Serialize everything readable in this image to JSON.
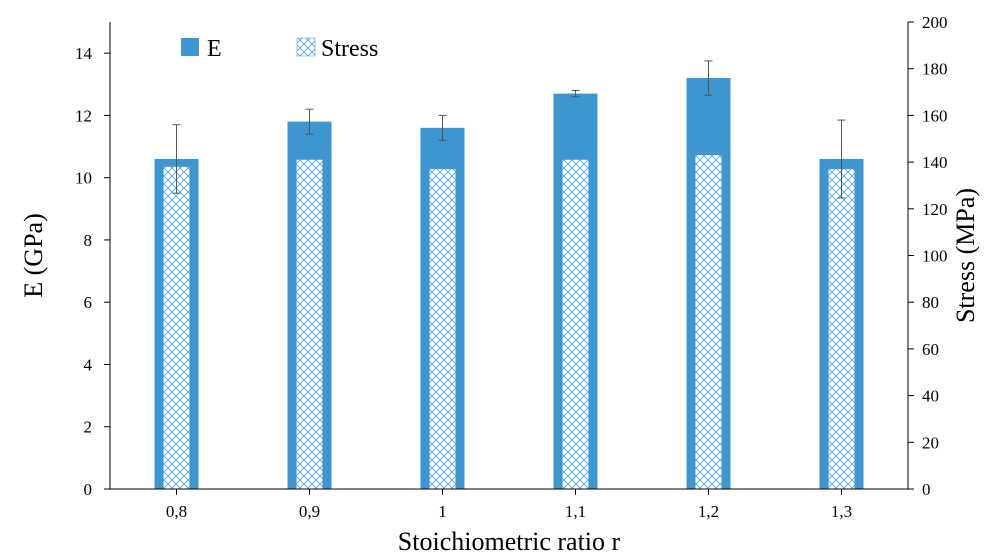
{
  "chart_data": {
    "type": "bar",
    "categories": [
      "0,8",
      "0,9",
      "1",
      "1,1",
      "1,2",
      "1,3"
    ],
    "xlabel": "Stoichiometric ratio r",
    "ylabel": "E (GPa)",
    "y2label": "Stress (MPa)",
    "ylim": [
      0,
      15
    ],
    "y2lim": [
      0,
      200
    ],
    "yticks": [
      "0",
      "2",
      "4",
      "6",
      "8",
      "10",
      "12",
      "14"
    ],
    "y2ticks": [
      "0",
      "20",
      "40",
      "60",
      "80",
      "100",
      "120",
      "140",
      "160",
      "180",
      "200"
    ],
    "grid": false,
    "legend_position": "top-left",
    "series": [
      {
        "name": "E",
        "axis": "left",
        "values": [
          10.6,
          11.8,
          11.6,
          12.7,
          13.2,
          10.6
        ],
        "errors": [
          1.1,
          0.4,
          0.4,
          0.1,
          0.55,
          1.25
        ],
        "color": "#3d96cf",
        "pattern": "solid"
      },
      {
        "name": "Stress",
        "axis": "right",
        "values": [
          138,
          141,
          137,
          141,
          143,
          137
        ],
        "color": "#5aa7de",
        "pattern": "crosshatch"
      }
    ]
  }
}
